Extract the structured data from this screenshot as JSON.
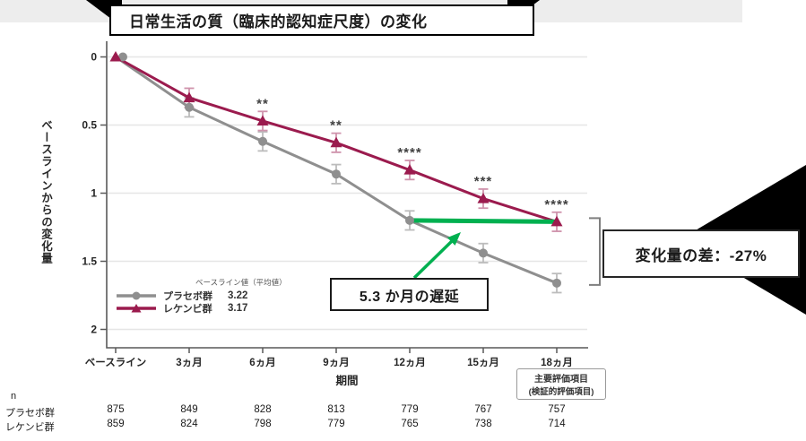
{
  "title": "日常生活の質（臨床的認知症尺度）の変化",
  "chart_data": {
    "type": "line",
    "title": "日常生活の質（臨床的認知症尺度）の変化",
    "xlabel": "期間",
    "ylabel": "ベースラインからの変化量",
    "ylim": [
      0,
      2
    ],
    "y_axis_inverted": true,
    "grid": "horizontal",
    "yticks": [
      "0",
      "0.5",
      "1",
      "1.5",
      "2"
    ],
    "categories": [
      "ベースライン",
      "3ヵ月",
      "6ヵ月",
      "9ヵ月",
      "12ヵ月",
      "15ヵ月",
      "18ヵ月"
    ],
    "series": [
      {
        "name": "プラセボ群",
        "baseline_mean": "3.22",
        "marker": "circle",
        "color": "#8f8f8f",
        "error_color": "#bcbcbc",
        "values": [
          0,
          0.37,
          0.62,
          0.86,
          1.2,
          1.44,
          1.66
        ],
        "n": [
          875,
          849,
          828,
          813,
          779,
          767,
          757
        ]
      },
      {
        "name": "レケンビ群",
        "baseline_mean": "3.17",
        "marker": "triangle",
        "color": "#9b1b4e",
        "error_color": "#cf93ac",
        "values": [
          0,
          0.3,
          0.47,
          0.63,
          0.83,
          1.04,
          1.21
        ],
        "n": [
          859,
          824,
          798,
          779,
          765,
          738,
          714
        ]
      }
    ],
    "error_bar": 0.07,
    "significance": [
      {
        "index": 2,
        "stars": "**"
      },
      {
        "index": 3,
        "stars": "**"
      },
      {
        "index": 4,
        "stars": "****"
      },
      {
        "index": 5,
        "stars": "***"
      },
      {
        "index": 6,
        "stars": "****"
      }
    ]
  },
  "legend": {
    "header": "ベースライン値（平均値）"
  },
  "annotations": {
    "delay_label": "5.3 か月の遅延",
    "diff_label": "変化量の差：-27%",
    "endpoint_line1": "主要評価項目",
    "endpoint_line2": "(検証的評価項目)",
    "n_label": "n",
    "green": "#00b050"
  }
}
